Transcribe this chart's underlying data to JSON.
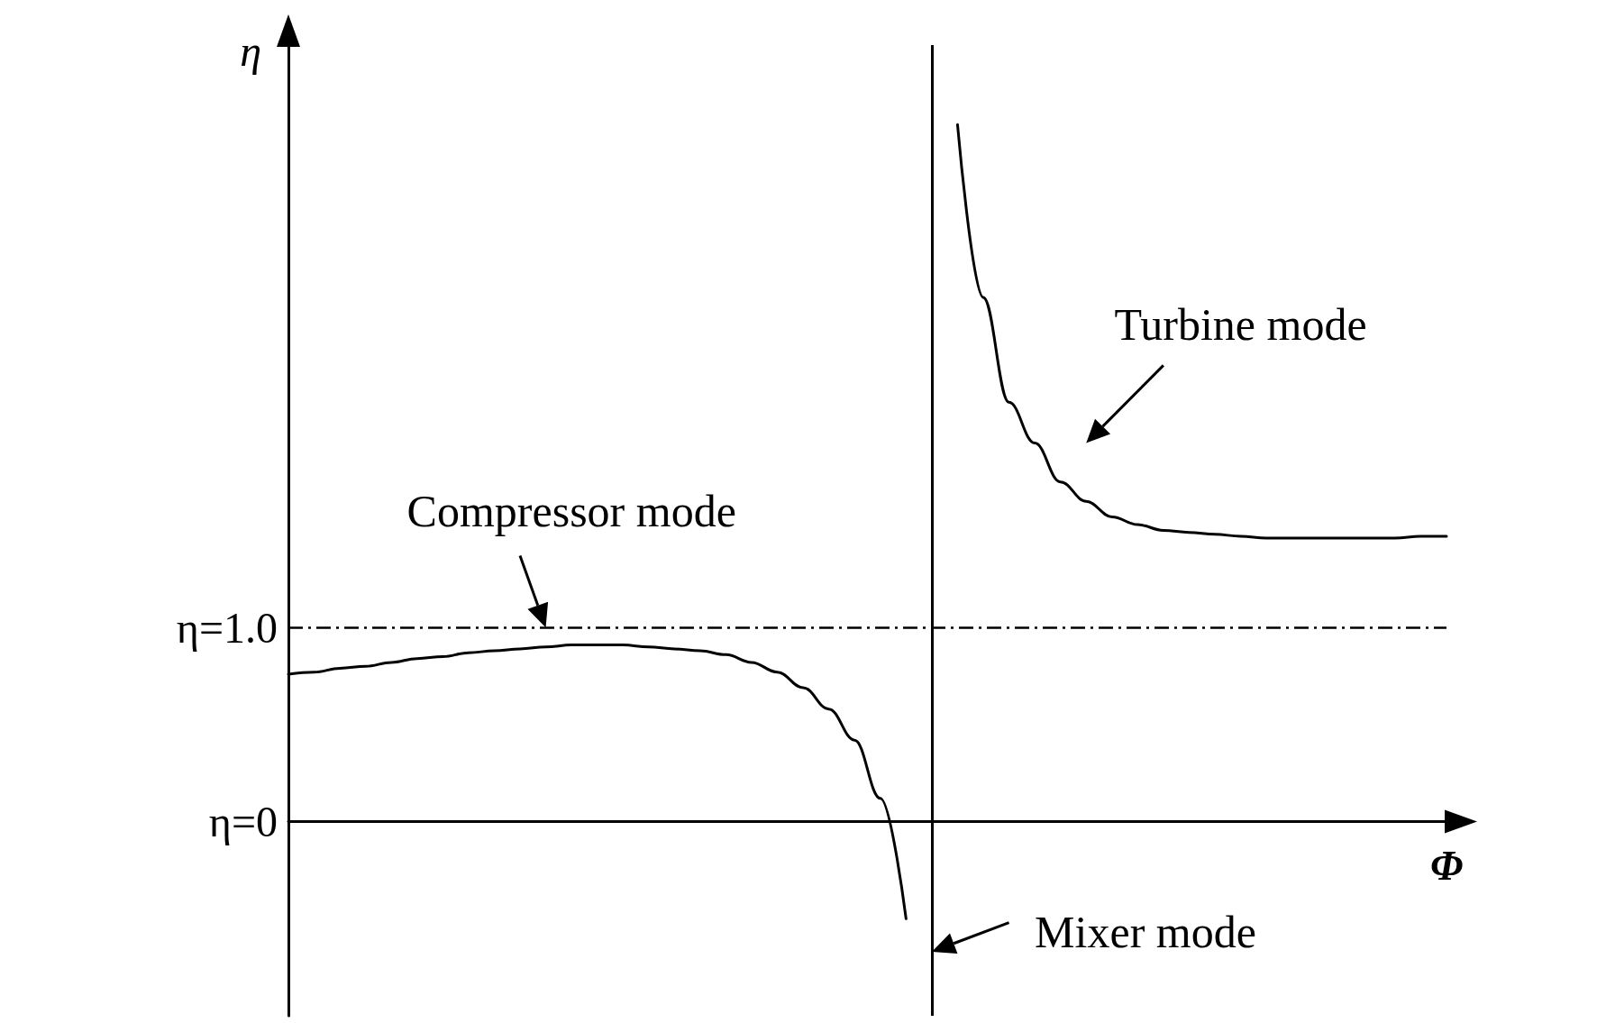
{
  "chart_data": {
    "type": "line",
    "xlabel": "Φ",
    "ylabel": "η",
    "categories": [
      null,
      null,
      null,
      null,
      null,
      null,
      null,
      null,
      null,
      null,
      null,
      null,
      null,
      null,
      null,
      null,
      null,
      null,
      null,
      null,
      null,
      null,
      null,
      null,
      null,
      null,
      null,
      null,
      null,
      null,
      null,
      null,
      null,
      null,
      null,
      null,
      null,
      null,
      null,
      null,
      null,
      null,
      null,
      null,
      null,
      null
    ],
    "series": [
      {
        "color": "#000000",
        "values": [
          0.76,
          0.77,
          0.79,
          0.8,
          0.82,
          0.84,
          0.85,
          0.87,
          0.88,
          0.89,
          0.9,
          0.91,
          0.91,
          0.91,
          0.9,
          0.89,
          0.88,
          0.86,
          0.82,
          0.77,
          0.69,
          0.58,
          0.42,
          0.12,
          -0.5,
          null,
          null,
          null,
          null,
          null,
          null,
          null,
          null,
          null,
          null,
          null,
          null,
          null,
          null,
          null,
          null,
          null,
          null,
          null,
          null,
          null
        ]
      },
      {
        "color": "#000000",
        "values": [
          null,
          null,
          null,
          null,
          null,
          null,
          null,
          null,
          null,
          null,
          null,
          null,
          null,
          null,
          null,
          null,
          null,
          null,
          null,
          null,
          null,
          null,
          null,
          null,
          null,
          null,
          3.59,
          2.7,
          2.16,
          1.95,
          1.75,
          1.65,
          1.57,
          1.53,
          1.5,
          1.49,
          1.48,
          1.47,
          1.46,
          1.46,
          1.46,
          1.46,
          1.46,
          1.46,
          1.47,
          1.47
        ]
      }
    ],
    "ylim": [
      -1,
      4
    ],
    "yticks": [
      {
        "value": 0,
        "label": "η=0"
      },
      {
        "value": 1,
        "label": "η=1.0"
      }
    ],
    "ref_lines": [
      {
        "axis": "y",
        "value": 1,
        "color": "#000000",
        "line_style": "dashed"
      }
    ],
    "annotations": [
      "Compressor mode",
      "Turbine mode",
      "Mixer mode"
    ],
    "marker": "none",
    "line_style": "solid"
  }
}
